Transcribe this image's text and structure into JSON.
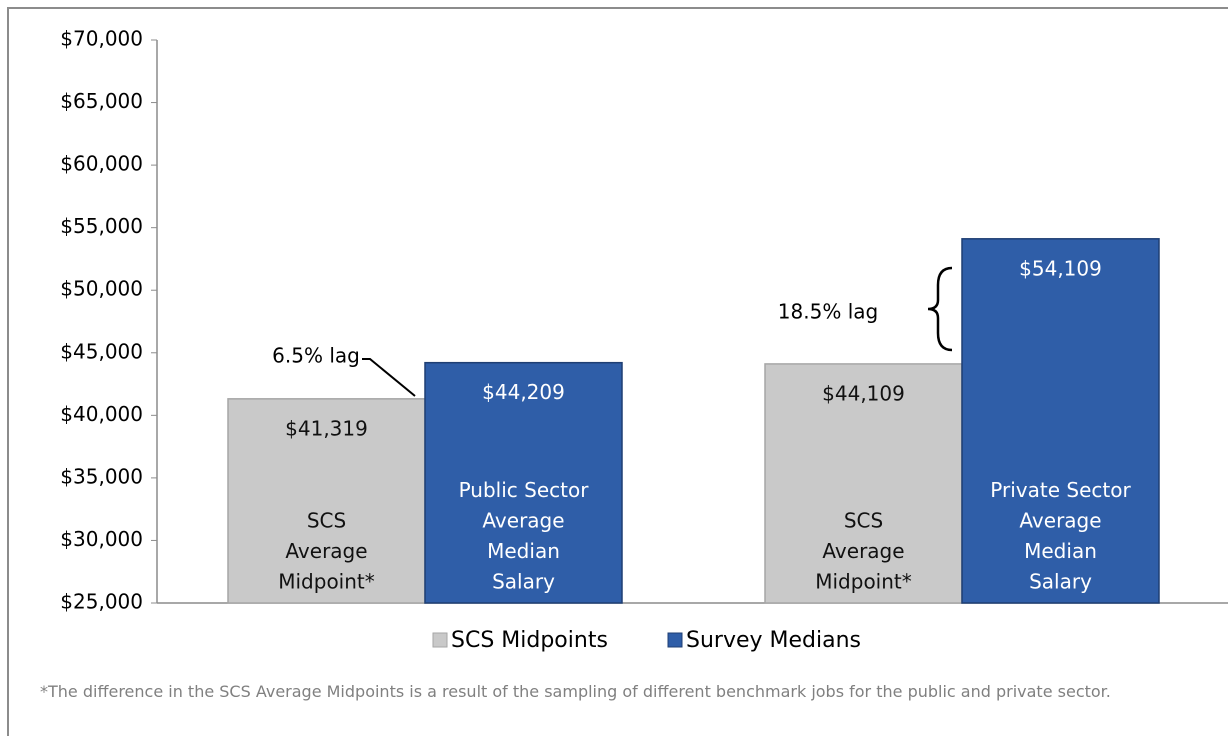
{
  "chart_data": {
    "type": "bar",
    "categories": [
      null,
      null
    ],
    "series": [
      {
        "name": "SCS Midpoints",
        "color": "#c9c9c9",
        "values": [
          41319,
          44109
        ],
        "value_labels": [
          "$41,319",
          "$44,109"
        ],
        "bar_labels": [
          [
            "SCS",
            "Average",
            "Midpoint*"
          ],
          [
            "SCS",
            "Average",
            "Midpoint*"
          ]
        ]
      },
      {
        "name": "Survey Medians",
        "color": "#2f5ea8",
        "values": [
          44209,
          54109
        ],
        "value_labels": [
          "$44,209",
          "$54,109"
        ],
        "bar_labels": [
          [
            "Public Sector",
            "Average",
            "Median",
            "Salary"
          ],
          [
            "Private Sector",
            "Average",
            "Median",
            "Salary"
          ]
        ]
      }
    ],
    "ylim": [
      25000,
      70000
    ],
    "yticks": [
      {
        "value": 25000,
        "label": "$25,000"
      },
      {
        "value": 30000,
        "label": "$30,000"
      },
      {
        "value": 35000,
        "label": "$35,000"
      },
      {
        "value": 40000,
        "label": "$40,000"
      },
      {
        "value": 45000,
        "label": "$45,000"
      },
      {
        "value": 50000,
        "label": "$50,000"
      },
      {
        "value": 55000,
        "label": "$55,000"
      },
      {
        "value": 60000,
        "label": "$60,000"
      },
      {
        "value": 65000,
        "label": "$65,000"
      },
      {
        "value": 70000,
        "label": "$70,000"
      }
    ],
    "grid": false,
    "legend": "bottom",
    "annotations": [
      "6.5% lag",
      "18.5% lag"
    ],
    "footnote": "*The difference in the SCS Average Midpoints is a result of the sampling of different benchmark jobs for the public and private sector."
  }
}
